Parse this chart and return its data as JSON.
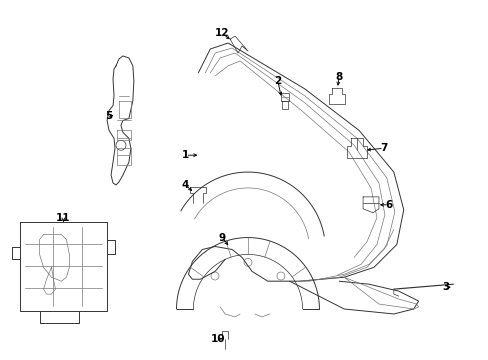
{
  "background_color": "#ffffff",
  "fig_width": 4.89,
  "fig_height": 3.6,
  "dpi": 100,
  "line_color": "#333333",
  "light_color": "#777777"
}
